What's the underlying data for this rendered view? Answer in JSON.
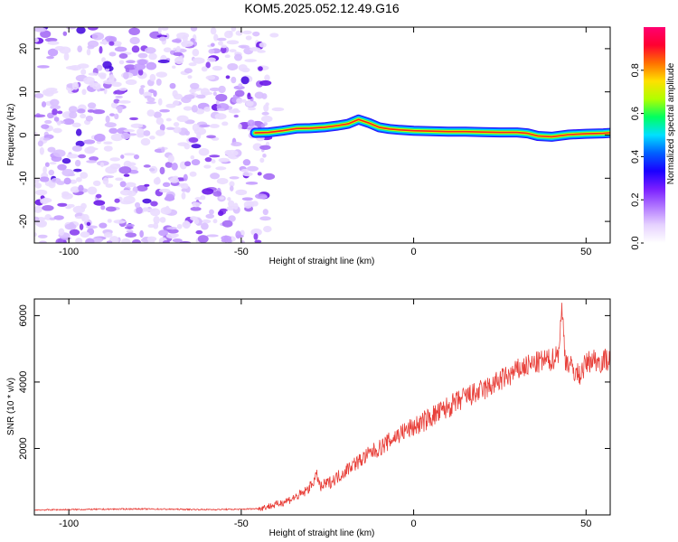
{
  "chart_data": [
    {
      "type": "heatmap",
      "title": "KOM5.2025.052.12.49.G16",
      "xlabel": "Height of straight line (km)",
      "ylabel": "Frequency (Hz)",
      "xlim": [
        -110,
        57
      ],
      "ylim": [
        -25,
        25
      ],
      "x_ticks": [
        -100,
        -50,
        0,
        50
      ],
      "y_ticks": [
        -20,
        -10,
        0,
        10,
        20
      ],
      "x_tick_labels": [
        "-100",
        "-50",
        "0",
        "50"
      ],
      "y_tick_labels": [
        "-20",
        "-10",
        "0",
        "10",
        "20"
      ],
      "noise_region_x": [
        -110,
        -42
      ],
      "ridge": {
        "x": [
          -46,
          -42,
          -38,
          -34,
          -30,
          -26,
          -22,
          -19,
          -16,
          -13,
          -10,
          -7,
          -4,
          0,
          5,
          10,
          15,
          20,
          25,
          30,
          33,
          36,
          40,
          45,
          50,
          55,
          57
        ],
        "y": [
          0.5,
          0.6,
          1.0,
          1.5,
          1.6,
          1.8,
          2.2,
          2.6,
          3.6,
          2.8,
          1.8,
          1.4,
          1.2,
          1.0,
          0.9,
          0.8,
          0.8,
          0.7,
          0.6,
          0.6,
          0.4,
          -0.2,
          -0.4,
          0.1,
          0.3,
          0.4,
          0.5
        ]
      },
      "colorbar": {
        "label": "Normalized spectral amplitude",
        "ticks": [
          0.0,
          0.2,
          0.4,
          0.6,
          0.8
        ],
        "tick_labels": [
          "0.0",
          "0.2",
          "0.4",
          "0.6",
          "0.8"
        ],
        "range": [
          0,
          1
        ],
        "colors": [
          "#ffffff",
          "#e6d2ff",
          "#b278ff",
          "#7a1fff",
          "#1a00ff",
          "#0060ff",
          "#00e0ff",
          "#00ff60",
          "#b0ff00",
          "#ffe000",
          "#ff7000",
          "#ff0030",
          "#ff0070"
        ]
      },
      "grid": false
    },
    {
      "type": "line",
      "xlabel": "Height of straight line (km)",
      "ylabel": "SNR (10 * v/v)",
      "xlim": [
        -110,
        57
      ],
      "ylim": [
        0,
        6500
      ],
      "x_ticks": [
        -100,
        -50,
        0,
        50
      ],
      "y_ticks": [
        2000,
        4000,
        6000
      ],
      "x_tick_labels": [
        "-100",
        "-50",
        "0",
        "50"
      ],
      "y_tick_labels": [
        "2000",
        "4000",
        "6000"
      ],
      "series": [
        {
          "color": "#e8403a",
          "x": [
            -110,
            -100,
            -90,
            -80,
            -70,
            -60,
            -50,
            -45,
            -42,
            -40,
            -38,
            -35,
            -32,
            -30,
            -28,
            -27,
            -26,
            -24,
            -22,
            -20,
            -18,
            -16,
            -14,
            -12,
            -10,
            -8,
            -6,
            -4,
            -2,
            0,
            2,
            5,
            8,
            10,
            12,
            15,
            18,
            20,
            22,
            25,
            28,
            30,
            32,
            35,
            38,
            40,
            42,
            43,
            44,
            46,
            48,
            50,
            52,
            54,
            56,
            57
          ],
          "y": [
            150,
            160,
            170,
            180,
            170,
            160,
            170,
            190,
            260,
            300,
            380,
            500,
            650,
            850,
            1200,
            800,
            900,
            1000,
            1150,
            1300,
            1500,
            1600,
            1750,
            1900,
            2000,
            2150,
            2300,
            2450,
            2550,
            2650,
            2750,
            2950,
            3100,
            3250,
            3350,
            3550,
            3650,
            3750,
            3850,
            4050,
            4200,
            4350,
            4450,
            4550,
            4650,
            4650,
            4900,
            6200,
            4700,
            4400,
            4200,
            4550,
            4700,
            4600,
            4700,
            4650
          ],
          "noise_amplitude": 700
        }
      ],
      "grid": false
    }
  ]
}
